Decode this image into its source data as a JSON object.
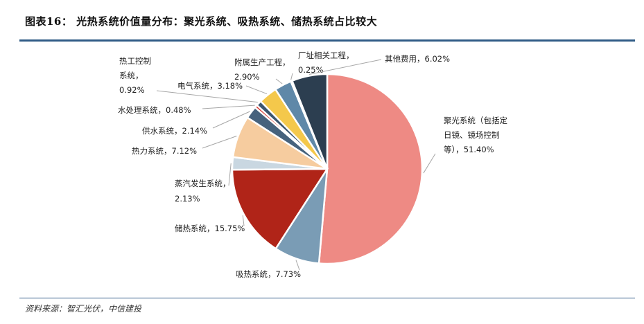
{
  "title": "图表16：  光热系统价值量分布：聚光系统、吸热系统、储热系统占比较大",
  "source": "资料来源：智汇光伏，中信建投",
  "chart_data": {
    "type": "pie",
    "start": "top",
    "direction": "clockwise",
    "slices": [
      {
        "name": "聚光系统（包括定日镜、镜场控制等）",
        "value": 51.4,
        "color": "#ee8a84",
        "label_lines": [
          "聚光系统（包括定",
          "日镜、镜场控制",
          "等），51.40%"
        ]
      },
      {
        "name": "吸热系统",
        "value": 7.73,
        "color": "#7a9cb5",
        "label_lines": [
          "吸热系统，7.73%"
        ]
      },
      {
        "name": "储热系统",
        "value": 15.75,
        "color": "#b02418",
        "label_lines": [
          "储热系统，15.75%"
        ]
      },
      {
        "name": "蒸汽发生系统",
        "value": 2.13,
        "color": "#c9d7e1",
        "label_lines": [
          "蒸汽发生系统，",
          "2.13%"
        ]
      },
      {
        "name": "热力系统",
        "value": 7.12,
        "color": "#f6cc9f",
        "label_lines": [
          "热力系统，7.12%"
        ]
      },
      {
        "name": "供水系统",
        "value": 2.14,
        "color": "#46627d",
        "label_lines": [
          "供水系统，2.14%"
        ]
      },
      {
        "name": "水处理系统",
        "value": 0.48,
        "color": "#d8322a",
        "label_lines": [
          "水处理系统，0.48%"
        ]
      },
      {
        "name": "热工控制系统",
        "value": 0.92,
        "color": "#3d566f",
        "label_lines": [
          "热工控制",
          "系统，",
          "0.92%"
        ]
      },
      {
        "name": "电气系统",
        "value": 3.18,
        "color": "#f4c84b",
        "label_lines": [
          "电气系统，3.18%"
        ]
      },
      {
        "name": "附属生产工程",
        "value": 2.9,
        "color": "#5f88a8",
        "label_lines": [
          "附属生产工程，",
          "2.90%"
        ]
      },
      {
        "name": "厂址相关工程",
        "value": 0.25,
        "color": "#9ab3c6",
        "label_lines": [
          "厂址相关工程，",
          "0.25%"
        ]
      },
      {
        "name": "其他费用",
        "value": 6.02,
        "color": "#2c3e50",
        "label_lines": [
          "其他费用，6.02%"
        ]
      }
    ]
  }
}
